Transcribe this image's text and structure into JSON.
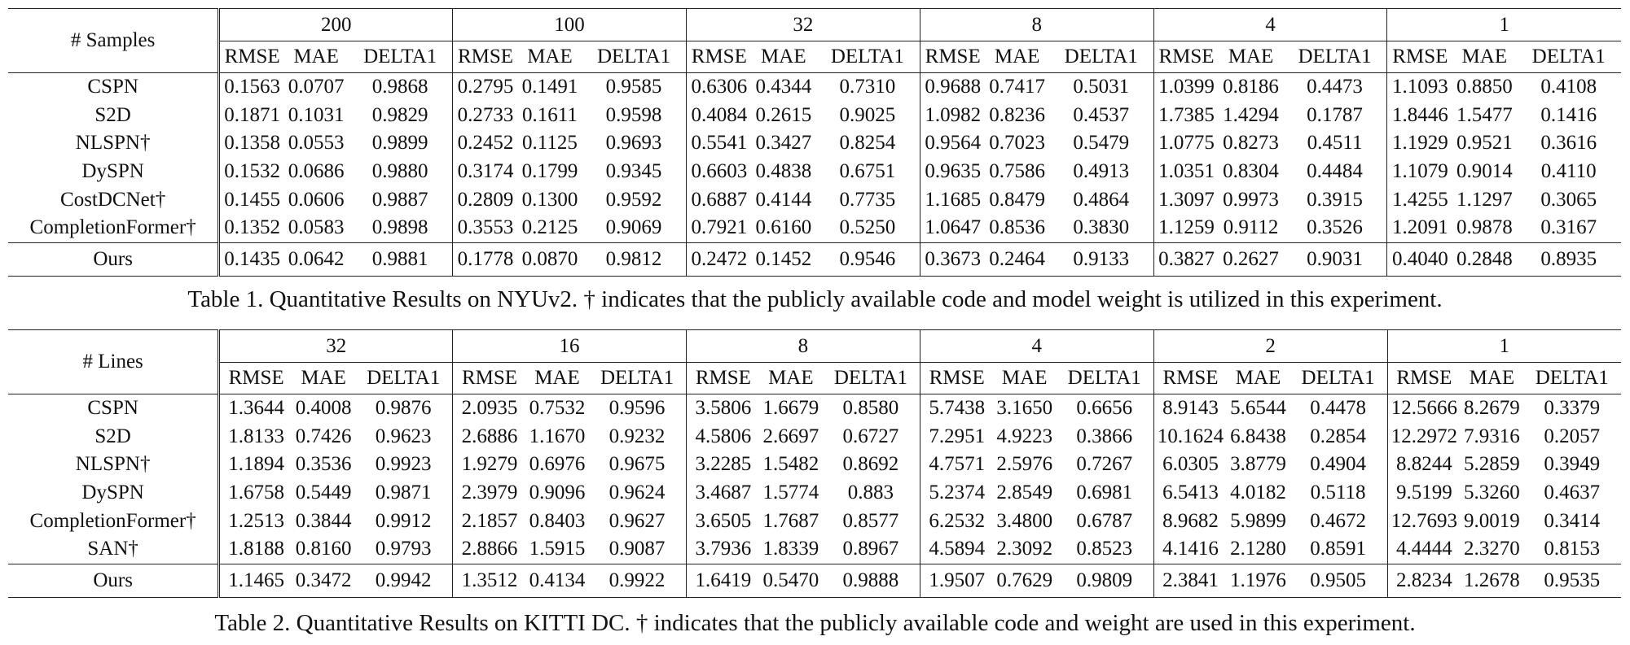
{
  "table1": {
    "corner": "# Samples",
    "groups": [
      "200",
      "100",
      "32",
      "8",
      "4",
      "1"
    ],
    "metrics": [
      "RMSE",
      "MAE",
      "DELTA1"
    ],
    "rows": [
      {
        "name": "CSPN",
        "values": [
          "0.1563",
          "0.0707",
          "0.9868",
          "0.2795",
          "0.1491",
          "0.9585",
          "0.6306",
          "0.4344",
          "0.7310",
          "0.9688",
          "0.7417",
          "0.5031",
          "1.0399",
          "0.8186",
          "0.4473",
          "1.1093",
          "0.8850",
          "0.4108"
        ],
        "bold": []
      },
      {
        "name": "S2D",
        "values": [
          "0.1871",
          "0.1031",
          "0.9829",
          "0.2733",
          "0.1611",
          "0.9598",
          "0.4084",
          "0.2615",
          "0.9025",
          "1.0982",
          "0.8236",
          "0.4537",
          "1.7385",
          "1.4294",
          "0.1787",
          "1.8446",
          "1.5477",
          "0.1416"
        ],
        "bold": []
      },
      {
        "name": "NLSPN†",
        "values": [
          "0.1358",
          "0.0553",
          "0.9899",
          "0.2452",
          "0.1125",
          "0.9693",
          "0.5541",
          "0.3427",
          "0.8254",
          "0.9564",
          "0.7023",
          "0.5479",
          "1.0775",
          "0.8273",
          "0.4511",
          "1.1929",
          "0.9521",
          "0.3616"
        ],
        "bold": [
          1,
          2
        ]
      },
      {
        "name": "DySPN",
        "values": [
          "0.1532",
          "0.0686",
          "0.9880",
          "0.3174",
          "0.1799",
          "0.9345",
          "0.6603",
          "0.4838",
          "0.6751",
          "0.9635",
          "0.7586",
          "0.4913",
          "1.0351",
          "0.8304",
          "0.4484",
          "1.1079",
          "0.9014",
          "0.4110"
        ],
        "bold": []
      },
      {
        "name": "CostDCNet†",
        "values": [
          "0.1455",
          "0.0606",
          "0.9887",
          "0.2809",
          "0.1300",
          "0.9592",
          "0.6887",
          "0.4144",
          "0.7735",
          "1.1685",
          "0.8479",
          "0.4864",
          "1.3097",
          "0.9973",
          "0.3915",
          "1.4255",
          "1.1297",
          "0.3065"
        ],
        "bold": []
      },
      {
        "name": "CompletionFormer†",
        "values": [
          "0.1352",
          "0.0583",
          "0.9898",
          "0.3553",
          "0.2125",
          "0.9069",
          "0.7921",
          "0.6160",
          "0.5250",
          "1.0647",
          "0.8536",
          "0.3830",
          "1.1259",
          "0.9112",
          "0.3526",
          "1.2091",
          "0.9878",
          "0.3167"
        ],
        "bold": [
          0
        ]
      },
      {
        "name": "Ours",
        "values": [
          "0.1435",
          "0.0642",
          "0.9881",
          "0.1778",
          "0.0870",
          "0.9812",
          "0.2472",
          "0.1452",
          "0.9546",
          "0.3673",
          "0.2464",
          "0.9133",
          "0.3827",
          "0.2627",
          "0.9031",
          "0.4040",
          "0.2848",
          "0.8935"
        ],
        "bold": [
          3,
          4,
          5,
          6,
          7,
          8,
          9,
          10,
          11,
          12,
          13,
          14,
          15,
          16,
          17
        ]
      }
    ],
    "caption": "Table 1. Quantitative Results on NYUv2. † indicates that the publicly available code and model weight is utilized in this experiment."
  },
  "table2": {
    "corner": "# Lines",
    "groups": [
      "32",
      "16",
      "8",
      "4",
      "2",
      "1"
    ],
    "metrics": [
      "RMSE",
      "MAE",
      "DELTA1"
    ],
    "rows": [
      {
        "name": "CSPN",
        "values": [
          "1.3644",
          "0.4008",
          "0.9876",
          "2.0935",
          "0.7532",
          "0.9596",
          "3.5806",
          "1.6679",
          "0.8580",
          "5.7438",
          "3.1650",
          "0.6656",
          "8.9143",
          "5.6544",
          "0.4478",
          "12.5666",
          "8.2679",
          "0.3379"
        ],
        "bold": []
      },
      {
        "name": "S2D",
        "values": [
          "1.8133",
          "0.7426",
          "0.9623",
          "2.6886",
          "1.1670",
          "0.9232",
          "4.5806",
          "2.6697",
          "0.6727",
          "7.2951",
          "4.9223",
          "0.3866",
          "10.1624",
          "6.8438",
          "0.2854",
          "12.2972",
          "7.9316",
          "0.2057"
        ],
        "bold": []
      },
      {
        "name": "NLSPN†",
        "values": [
          "1.1894",
          "0.3536",
          "0.9923",
          "1.9279",
          "0.6976",
          "0.9675",
          "3.2285",
          "1.5482",
          "0.8692",
          "4.7571",
          "2.5976",
          "0.7267",
          "6.0305",
          "3.8779",
          "0.4904",
          "8.8244",
          "5.2859",
          "0.3949"
        ],
        "bold": []
      },
      {
        "name": "DySPN",
        "values": [
          "1.6758",
          "0.5449",
          "0.9871",
          "2.3979",
          "0.9096",
          "0.9624",
          "3.4687",
          "1.5774",
          "0.883",
          "5.2374",
          "2.8549",
          "0.6981",
          "6.5413",
          "4.0182",
          "0.5118",
          "9.5199",
          "5.3260",
          "0.4637"
        ],
        "bold": []
      },
      {
        "name": "CompletionFormer†",
        "values": [
          "1.2513",
          "0.3844",
          "0.9912",
          "2.1857",
          "0.8403",
          "0.9627",
          "3.6505",
          "1.7687",
          "0.8577",
          "6.2532",
          "3.4800",
          "0.6787",
          "8.9682",
          "5.9899",
          "0.4672",
          "12.7693",
          "9.0019",
          "0.3414"
        ],
        "bold": []
      },
      {
        "name": "SAN†",
        "values": [
          "1.8188",
          "0.8160",
          "0.9793",
          "2.8866",
          "1.5915",
          "0.9087",
          "3.7936",
          "1.8339",
          "0.8967",
          "4.5894",
          "2.3092",
          "0.8523",
          "4.1416",
          "2.1280",
          "0.8591",
          "4.4444",
          "2.3270",
          "0.8153"
        ],
        "bold": []
      },
      {
        "name": "Ours",
        "values": [
          "1.1465",
          "0.3472",
          "0.9942",
          "1.3512",
          "0.4134",
          "0.9922",
          "1.6419",
          "0.5470",
          "0.9888",
          "1.9507",
          "0.7629",
          "0.9809",
          "2.3841",
          "1.1976",
          "0.9505",
          "2.8234",
          "1.2678",
          "0.9535"
        ],
        "bold": [
          0,
          1,
          2,
          3,
          4,
          5,
          6,
          7,
          8,
          9,
          10,
          11,
          12,
          13,
          14,
          15,
          16,
          17
        ]
      }
    ],
    "caption": "Table 2. Quantitative Results on KITTI DC. † indicates that the publicly available code and weight are used in this experiment."
  }
}
